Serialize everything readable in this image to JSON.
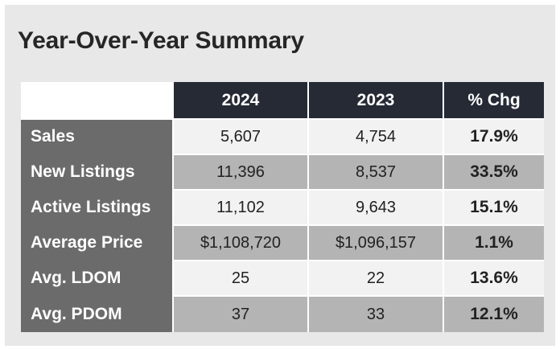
{
  "title": "Year-Over-Year Summary",
  "columns": [
    "2024",
    "2023",
    "% Chg"
  ],
  "rows": [
    {
      "label": "Sales",
      "y2024": "5,607",
      "y2023": "4,754",
      "chg": "17.9%"
    },
    {
      "label": "New Listings",
      "y2024": "11,396",
      "y2023": "8,537",
      "chg": "33.5%"
    },
    {
      "label": "Active Listings",
      "y2024": "11,102",
      "y2023": "9,643",
      "chg": "15.1%"
    },
    {
      "label": "Average Price",
      "y2024": "$1,108,720",
      "y2023": "$1,096,157",
      "chg": "1.1%"
    },
    {
      "label": "Avg. LDOM",
      "y2024": "25",
      "y2023": "22",
      "chg": "13.6%"
    },
    {
      "label": "Avg. PDOM",
      "y2024": "37",
      "y2023": "33",
      "chg": "12.1%"
    }
  ],
  "colors": {
    "header_bg": "#252a35",
    "label_bg": "#6b6b6b",
    "row_light": "#f2f2f2",
    "row_dark": "#b4b4b4",
    "card_bg": "#e8e8e8"
  }
}
